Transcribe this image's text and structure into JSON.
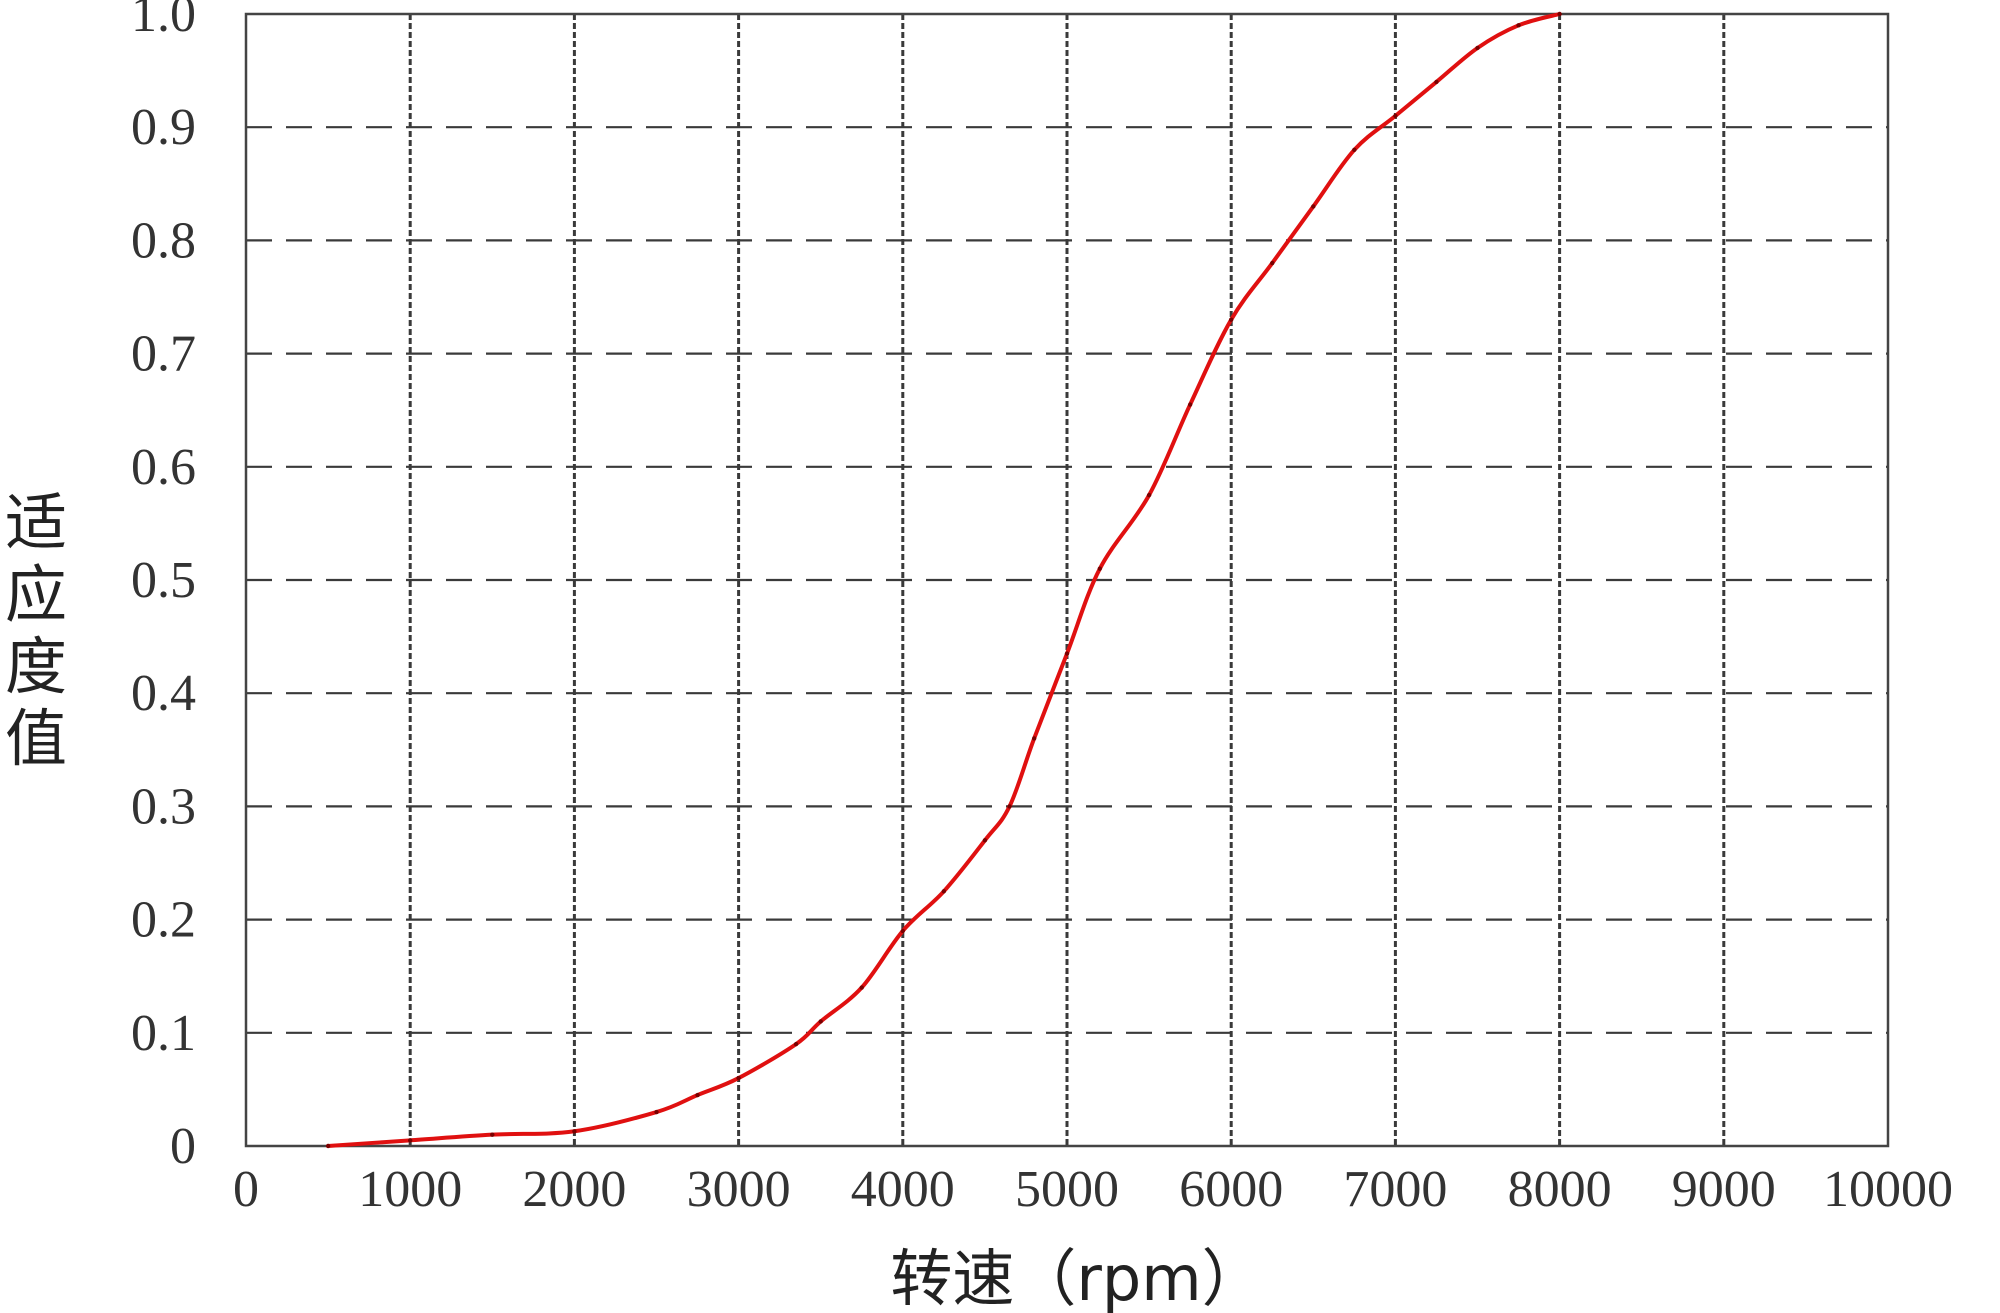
{
  "chart_data": {
    "type": "line",
    "title": "",
    "xlabel": "转速（rpm）",
    "ylabel": "适应度值",
    "xlim": [
      0,
      10000
    ],
    "ylim": [
      0,
      1.0
    ],
    "x_ticks": [
      "0",
      "1000",
      "2000",
      "3000",
      "4000",
      "5000",
      "6000",
      "7000",
      "8000",
      "9000",
      "10000"
    ],
    "y_ticks": [
      "0",
      "0.1",
      "0.2",
      "0.3",
      "0.4",
      "0.5",
      "0.6",
      "0.7",
      "0.8",
      "0.9",
      "1.0"
    ],
    "grid": true,
    "legend": "none",
    "series_color": "#e01010",
    "series": [
      {
        "x": [
          500,
          1000,
          1500,
          2000,
          2500,
          2750,
          3000,
          3350,
          3500,
          3750,
          4000,
          4250,
          4500,
          4650,
          4800,
          5000,
          5200,
          5500,
          5750,
          6000,
          6250,
          6500,
          6750,
          7000,
          7250,
          7500,
          7750,
          8000
        ],
        "values": [
          0.0,
          0.005,
          0.01,
          0.013,
          0.03,
          0.045,
          0.06,
          0.09,
          0.11,
          0.14,
          0.19,
          0.225,
          0.27,
          0.3,
          0.36,
          0.435,
          0.51,
          0.575,
          0.655,
          0.73,
          0.78,
          0.83,
          0.88,
          0.91,
          0.94,
          0.97,
          0.99,
          1.0
        ]
      }
    ]
  }
}
